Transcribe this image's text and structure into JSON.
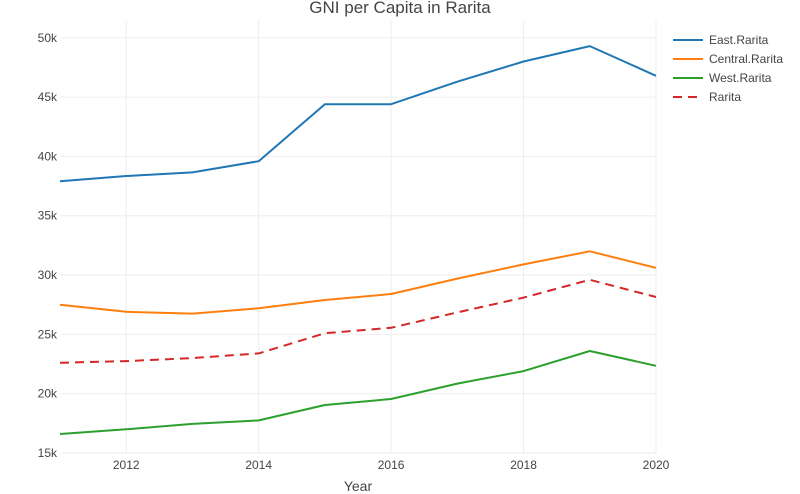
{
  "chart_data": {
    "type": "line",
    "title": "GNI per Capita in Rarita",
    "xlabel": "Year",
    "ylabel": "",
    "x": [
      2011,
      2012,
      2013,
      2014,
      2015,
      2016,
      2017,
      2018,
      2019,
      2020
    ],
    "xlim": [
      2011,
      2020
    ],
    "ylim": [
      15000,
      51500
    ],
    "x_ticks": [
      2012,
      2014,
      2016,
      2018,
      2020
    ],
    "x_tick_labels": [
      "2012",
      "2014",
      "2016",
      "2018",
      "2020"
    ],
    "y_ticks": [
      15000,
      20000,
      25000,
      30000,
      35000,
      40000,
      45000,
      50000
    ],
    "y_tick_labels": [
      "15k",
      "20k",
      "25k",
      "30k",
      "35k",
      "40k",
      "45k",
      "50k"
    ],
    "grid": true,
    "legend_position": "top-right",
    "series": [
      {
        "name": "East.Rarita",
        "color": "#1f77b4",
        "dash": "solid",
        "values": [
          37900,
          38350,
          38650,
          39600,
          44400,
          44400,
          46300,
          48000,
          49300,
          46800
        ]
      },
      {
        "name": "Central.Rarita",
        "color": "#ff7f0e",
        "dash": "solid",
        "values": [
          27500,
          26900,
          26750,
          27200,
          27900,
          28400,
          29700,
          30900,
          32000,
          30600
        ]
      },
      {
        "name": "West.Rarita",
        "color": "#2ca02c",
        "dash": "solid",
        "values": [
          16600,
          17000,
          17450,
          17750,
          19050,
          19550,
          20850,
          21900,
          23600,
          22350
        ]
      },
      {
        "name": "Rarita",
        "color": "#d62728",
        "dash": "dash",
        "values": [
          22600,
          22750,
          23000,
          23400,
          25100,
          25550,
          26850,
          28100,
          29600,
          28150
        ]
      }
    ]
  }
}
